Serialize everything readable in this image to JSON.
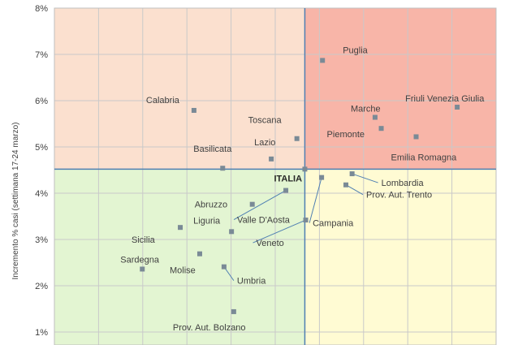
{
  "chart_data": {
    "type": "scatter",
    "title": "",
    "xlabel": "",
    "ylabel": "Incremento % casi (settimana 17-24 marzo)",
    "ylim": [
      0.9,
      8
    ],
    "yticks": [
      1,
      2,
      3,
      4,
      5,
      6,
      7,
      8
    ],
    "ytick_labels": [
      "1%",
      "2%",
      "3%",
      "4%",
      "5%",
      "6%",
      "7%",
      "8%"
    ],
    "xlim": [
      0,
      100
    ],
    "x_axis_visible": false,
    "reference": {
      "label": "ITALIA",
      "x": 56.7,
      "y": 4.52
    },
    "quadrant_colors": {
      "top_left": "#FBE0CF",
      "top_right": "#F8B5A8",
      "bottom_left": "#E3F5D2",
      "bottom_right": "#FFFBD3"
    },
    "reference_line_color": "#4F7FB2",
    "point_color": "#7A8A96",
    "leader_color": "#4F7FB2",
    "gridlines": true,
    "points": [
      {
        "label": "Puglia",
        "x": 60.7,
        "y": 6.87
      },
      {
        "label": "Calabria",
        "x": 31.6,
        "y": 5.79
      },
      {
        "label": "Marche",
        "x": 72.6,
        "y": 5.64
      },
      {
        "label": "Friuli Venezia Giulia",
        "x": 91.2,
        "y": 5.86
      },
      {
        "label": "Toscana",
        "x": 54.9,
        "y": 5.18
      },
      {
        "label": "Piemonte",
        "x": 74.0,
        "y": 5.4
      },
      {
        "label": "Lazio",
        "x": 49.1,
        "y": 4.74
      },
      {
        "label": "Emilia Romagna",
        "x": 81.9,
        "y": 5.22
      },
      {
        "label": "Basilicata",
        "x": 38.1,
        "y": 4.54
      },
      {
        "label": "Lombardia",
        "x": 67.4,
        "y": 4.42
      },
      {
        "label": "Prov. Aut. Trento",
        "x": 66.0,
        "y": 4.18
      },
      {
        "label": "Abruzzo",
        "x": 44.8,
        "y": 3.76
      },
      {
        "label": "Valle D'Aosta",
        "x": 52.4,
        "y": 4.06
      },
      {
        "label": "Campania",
        "x": 60.5,
        "y": 4.34
      },
      {
        "label": "Veneto",
        "x": 56.9,
        "y": 3.42
      },
      {
        "label": "Liguria",
        "x": 40.1,
        "y": 3.17
      },
      {
        "label": "Sicilia",
        "x": 28.5,
        "y": 3.26
      },
      {
        "label": "Sardegna",
        "x": 19.9,
        "y": 2.36
      },
      {
        "label": "Molise",
        "x": 32.9,
        "y": 2.69
      },
      {
        "label": "Umbria",
        "x": 38.4,
        "y": 2.41
      },
      {
        "label": "Prov. Aut. Bolzano",
        "x": 40.6,
        "y": 1.44
      }
    ]
  }
}
